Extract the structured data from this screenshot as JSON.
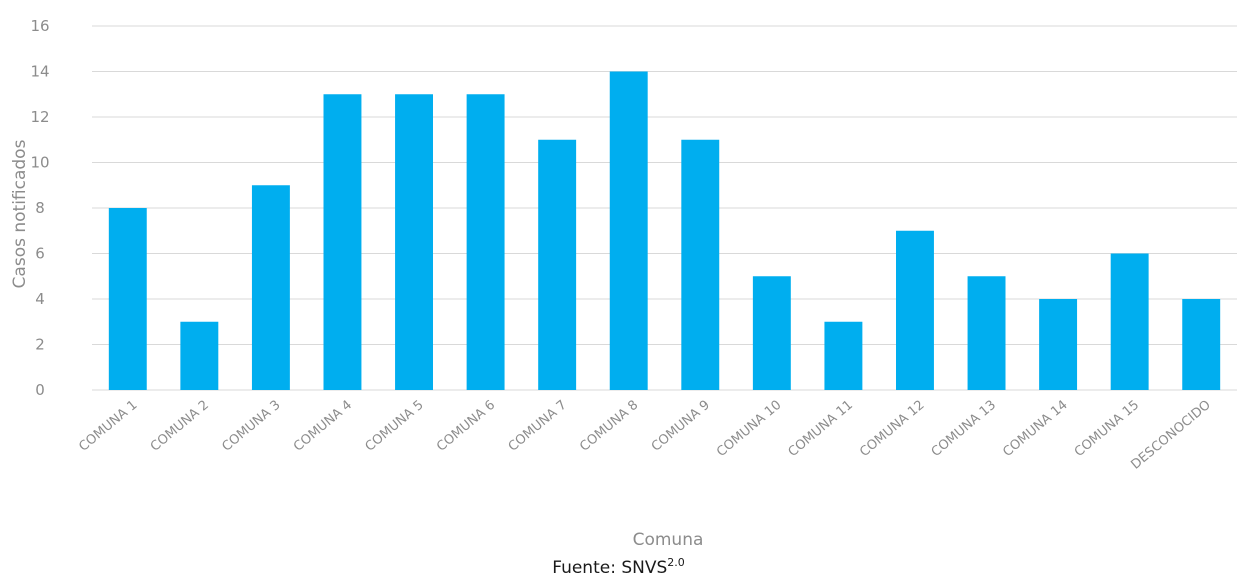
{
  "colors": {
    "bar": "#00aeef",
    "grid": "#d9d9d9",
    "axis_text": "#8c8c8c"
  },
  "source": {
    "prefix": "Fuente: SNVS",
    "superscript": "2.0"
  },
  "chart_data": {
    "type": "bar",
    "title": "",
    "xlabel": "Comuna",
    "ylabel": "Casos notificados",
    "ylim": [
      0,
      16
    ],
    "yticks": [
      "0",
      "2",
      "4",
      "6",
      "8",
      "10",
      "12",
      "14",
      "16"
    ],
    "grid": true,
    "categories": [
      "COMUNA 1",
      "COMUNA 2",
      "COMUNA 3",
      "COMUNA 4",
      "COMUNA 5",
      "COMUNA 6",
      "COMUNA 7",
      "COMUNA 8",
      "COMUNA 9",
      "COMUNA 10",
      "COMUNA 11",
      "COMUNA 12",
      "COMUNA 13",
      "COMUNA 14",
      "COMUNA 15",
      "DESCONOCIDO"
    ],
    "values": [
      8,
      3,
      9,
      13,
      13,
      13,
      11,
      14,
      11,
      5,
      3,
      7,
      5,
      4,
      6,
      4
    ]
  }
}
